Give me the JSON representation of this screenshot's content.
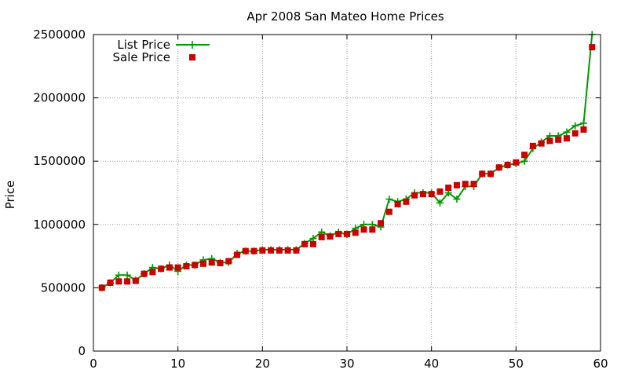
{
  "chart_data": {
    "type": "line",
    "title": "Apr 2008 San Mateo Home Prices",
    "xlabel": "",
    "ylabel": "Price",
    "xlim": [
      0,
      60
    ],
    "ylim": [
      0,
      2500000
    ],
    "xticks": [
      0,
      10,
      20,
      30,
      40,
      50,
      60
    ],
    "yticks": [
      0,
      500000,
      1000000,
      1500000,
      2000000,
      2500000
    ],
    "grid": true,
    "legend_position": "top-left",
    "x": [
      1,
      2,
      3,
      4,
      5,
      6,
      7,
      8,
      9,
      10,
      11,
      12,
      13,
      14,
      15,
      16,
      17,
      18,
      19,
      20,
      21,
      22,
      23,
      24,
      25,
      26,
      27,
      28,
      29,
      30,
      31,
      32,
      33,
      34,
      35,
      36,
      37,
      38,
      39,
      40,
      41,
      42,
      43,
      44,
      45,
      46,
      47,
      48,
      49,
      50,
      51,
      52,
      53,
      54,
      55,
      56,
      57,
      58,
      59
    ],
    "series": [
      {
        "name": "List Price",
        "style": "linespoints",
        "color": "#009900",
        "values": [
          500000,
          540000,
          600000,
          600000,
          560000,
          610000,
          660000,
          650000,
          680000,
          630000,
          680000,
          680000,
          720000,
          730000,
          700000,
          700000,
          770000,
          790000,
          790000,
          800000,
          800000,
          800000,
          800000,
          800000,
          850000,
          890000,
          940000,
          910000,
          940000,
          920000,
          970000,
          1000000,
          1000000,
          980000,
          1200000,
          1180000,
          1200000,
          1250000,
          1250000,
          1250000,
          1170000,
          1250000,
          1200000,
          1300000,
          1300000,
          1400000,
          1400000,
          1450000,
          1470000,
          1480000,
          1500000,
          1600000,
          1650000,
          1700000,
          1700000,
          1730000,
          1780000,
          1800000,
          2500000
        ]
      },
      {
        "name": "Sale Price",
        "style": "points",
        "color": "#cc0000",
        "values": [
          500000,
          540000,
          550000,
          550000,
          555000,
          610000,
          625000,
          650000,
          660000,
          660000,
          670000,
          680000,
          690000,
          700000,
          695000,
          710000,
          760000,
          790000,
          790000,
          795000,
          795000,
          795000,
          795000,
          795000,
          845000,
          845000,
          900000,
          905000,
          925000,
          925000,
          935000,
          960000,
          960000,
          1010000,
          1100000,
          1160000,
          1180000,
          1230000,
          1240000,
          1240000,
          1260000,
          1290000,
          1310000,
          1320000,
          1320000,
          1400000,
          1400000,
          1450000,
          1470000,
          1490000,
          1550000,
          1620000,
          1640000,
          1660000,
          1670000,
          1680000,
          1720000,
          1750000,
          2400000
        ]
      }
    ]
  }
}
